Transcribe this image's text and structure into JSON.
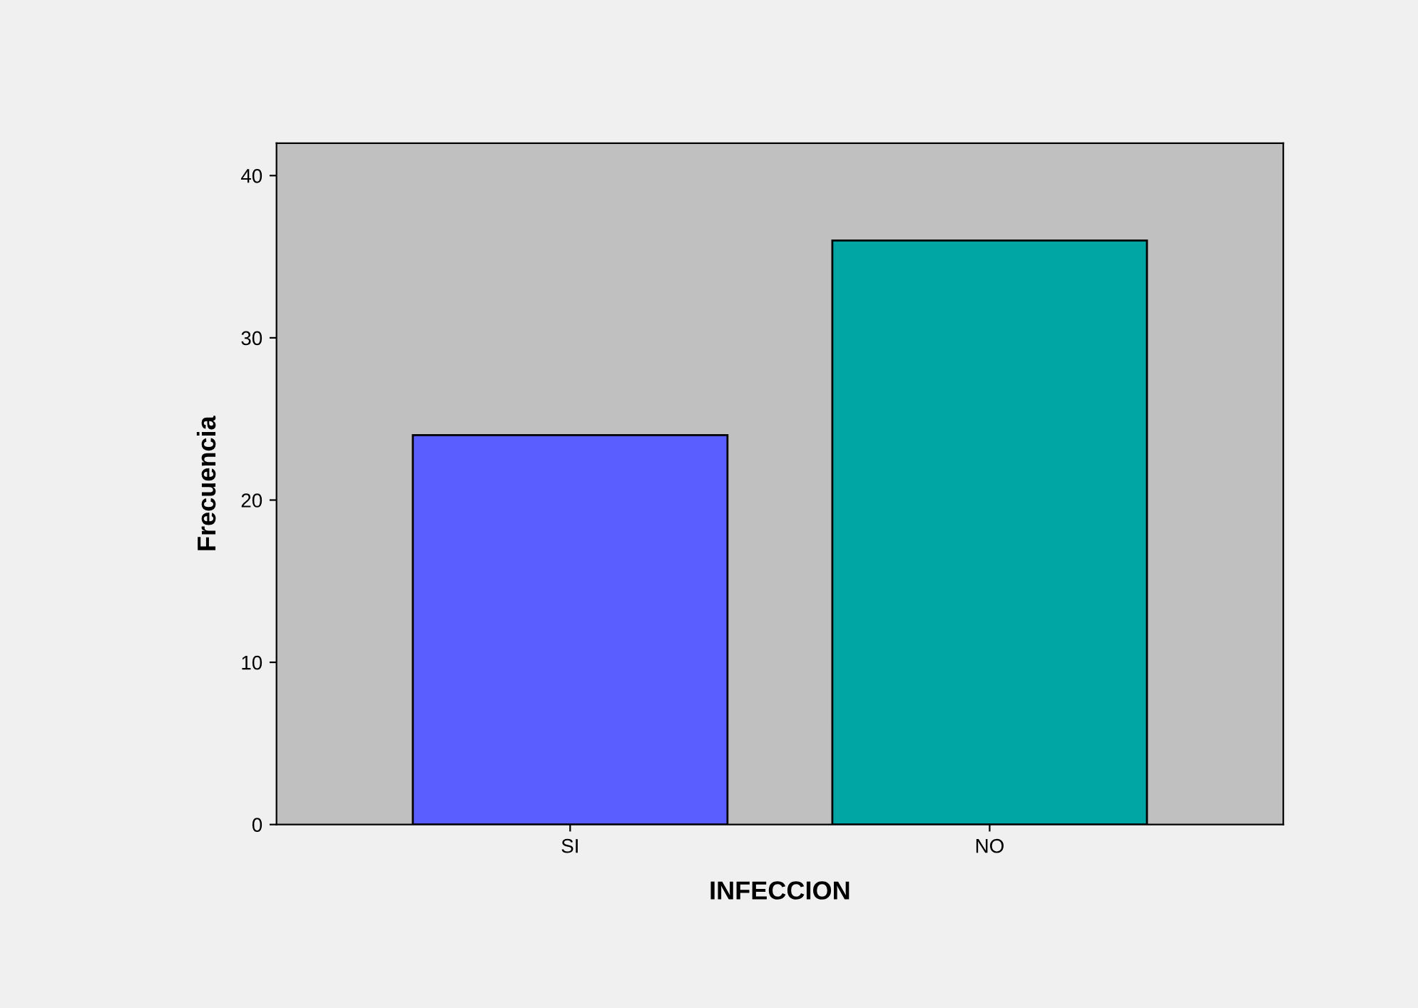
{
  "chart_data": {
    "type": "bar",
    "xlabel": "INFECCION",
    "ylabel": "Frecuencia",
    "categories": [
      "SI",
      "NO"
    ],
    "values": [
      24,
      36
    ],
    "colors": [
      "#5b5eff",
      "#00a6a4"
    ],
    "ylim": [
      0,
      42
    ],
    "yticks": [
      0,
      10,
      20,
      30,
      40
    ],
    "grid": false
  }
}
